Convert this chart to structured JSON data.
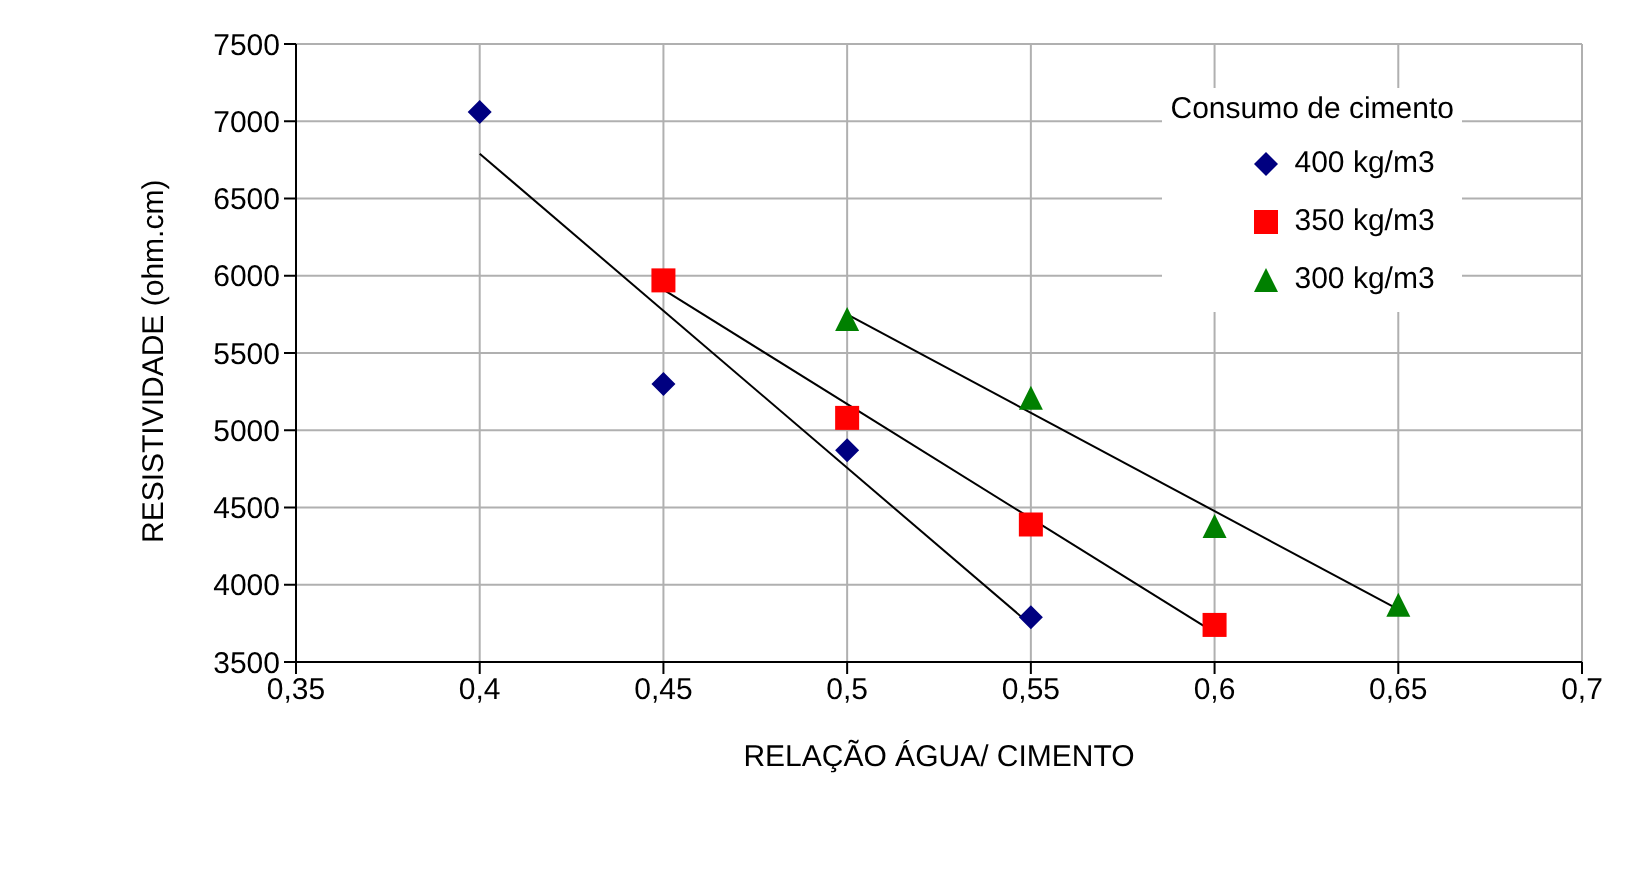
{
  "chart_data": {
    "type": "scatter",
    "xlabel": "RELAÇÃO ÁGUA/ CIMENTO",
    "ylabel": "RESISTIVIDADE  (ohm.cm)",
    "legend_title": "Consumo de cimento",
    "legend": "top right",
    "grid": true,
    "xlim": [
      0.35,
      0.7
    ],
    "xticks": [
      {
        "value": 0.35,
        "label": "0,35"
      },
      {
        "value": 0.4,
        "label": "0,4"
      },
      {
        "value": 0.45,
        "label": "0,45"
      },
      {
        "value": 0.5,
        "label": "0,5"
      },
      {
        "value": 0.55,
        "label": "0,55"
      },
      {
        "value": 0.6,
        "label": "0,6"
      },
      {
        "value": 0.65,
        "label": "0,65"
      },
      {
        "value": 0.7,
        "label": "0,7"
      }
    ],
    "ylim": [
      3500,
      7500
    ],
    "yticks": [
      3500,
      4000,
      4500,
      5000,
      5500,
      6000,
      6500,
      7000,
      7500
    ],
    "series": [
      {
        "name": "400 kg/m3",
        "marker": "diamond",
        "color": "#000080",
        "x": [
          0.4,
          0.45,
          0.5,
          0.55
        ],
        "values": [
          7060,
          5300,
          4870,
          3790
        ]
      },
      {
        "name": "350 kg/m3",
        "marker": "square",
        "color": "#ff0000",
        "x": [
          0.45,
          0.5,
          0.55,
          0.6
        ],
        "values": [
          5970,
          5080,
          4390,
          3740
        ]
      },
      {
        "name": "300 kg/m3",
        "marker": "triangle",
        "color": "#008000",
        "x": [
          0.5,
          0.55,
          0.6,
          0.65
        ],
        "values": [
          5720,
          5210,
          4380,
          3870
        ]
      },
      {
        "type": "line",
        "color": "#000000",
        "x": [
          0.4,
          0.55
        ],
        "values": [
          6790,
          3740
        ]
      },
      {
        "type": "line",
        "color": "#000000",
        "x": [
          0.45,
          0.6
        ],
        "values": [
          5910,
          3690
        ]
      },
      {
        "type": "line",
        "color": "#000000",
        "x": [
          0.5,
          0.65
        ],
        "values": [
          5750,
          3840
        ]
      }
    ]
  }
}
